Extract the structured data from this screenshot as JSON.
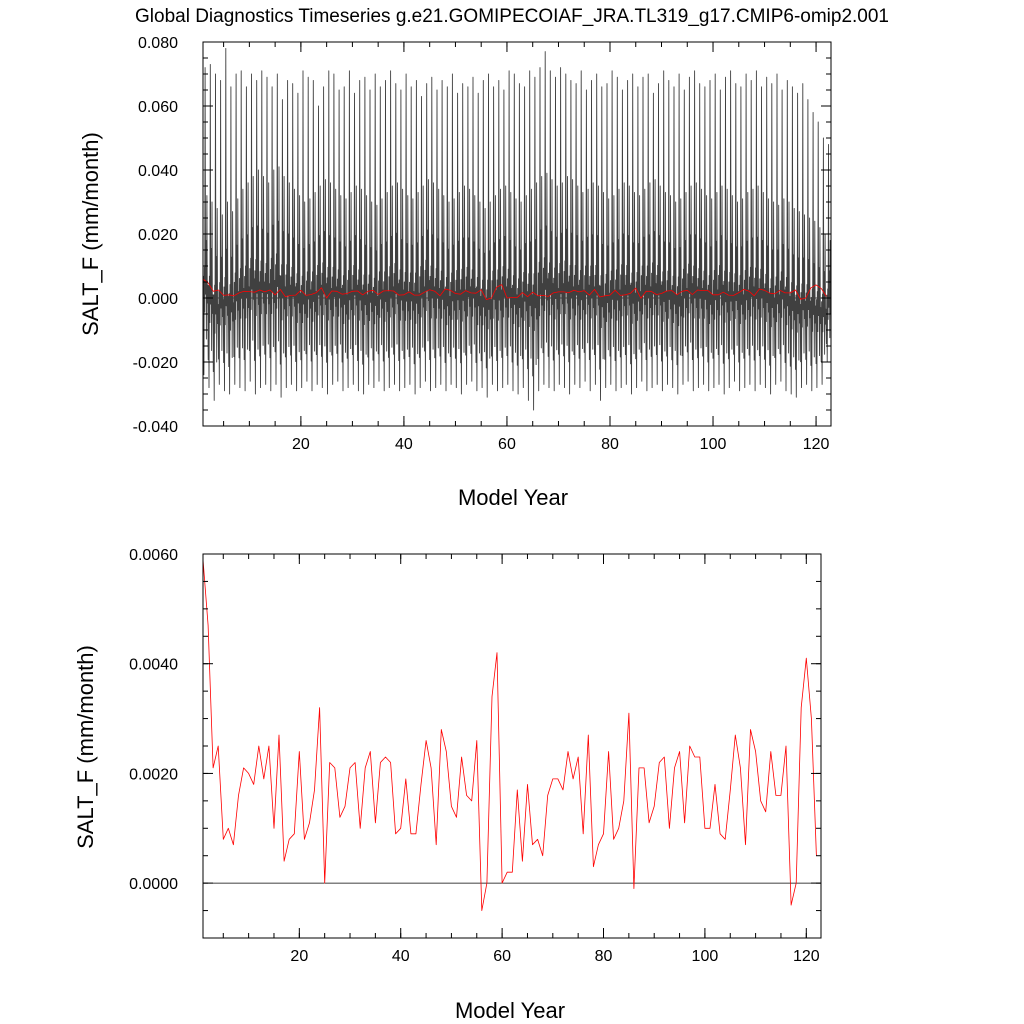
{
  "page_title": "Global Diagnostics Timeseries g.e21.GOMIPECOIAF_JRA.TL319_g17.CMIP6-omip2.001",
  "colors": {
    "monthly_series": "#404040",
    "annual_series": "#ff0000",
    "axis": "#000000",
    "background": "#ffffff"
  },
  "chart_data": [
    {
      "type": "line",
      "title": "",
      "xlabel": "Model Year",
      "ylabel": "SALT_F (mm/month)",
      "xlim": [
        1,
        122.9
      ],
      "ylim": [
        -0.04,
        0.08
      ],
      "grid": false,
      "x_ticks": [
        20,
        40,
        60,
        80,
        100,
        120
      ],
      "x_tick_labels": [
        "20",
        "40",
        "60",
        "80",
        "100",
        "120"
      ],
      "x_minor_step": 5,
      "y_ticks": [
        -0.04,
        -0.02,
        0.0,
        0.02,
        0.04,
        0.06,
        0.08
      ],
      "y_tick_labels": [
        "-0.040",
        "-0.020",
        "0.000",
        "0.020",
        "0.040",
        "0.060",
        "0.080"
      ],
      "y_minor_step": 0.005,
      "reference_line_y": 0.0,
      "series": [
        {
          "color": "#404040",
          "resolution": "monthly",
          "start_year": 1,
          "peak_max": [
            0.072,
            0.073,
            0.07,
            0.068,
            0.078,
            0.066,
            0.07,
            0.071,
            0.066,
            0.07,
            0.068,
            0.071,
            0.069,
            0.066,
            0.07,
            0.062,
            0.068,
            0.067,
            0.064,
            0.071,
            0.069,
            0.068,
            0.06,
            0.066,
            0.071,
            0.07,
            0.065,
            0.066,
            0.071,
            0.064,
            0.068,
            0.069,
            0.065,
            0.07,
            0.066,
            0.068,
            0.071,
            0.067,
            0.065,
            0.07,
            0.066,
            0.068,
            0.063,
            0.067,
            0.069,
            0.065,
            0.068,
            0.066,
            0.07,
            0.064,
            0.067,
            0.066,
            0.069,
            0.064,
            0.068,
            0.07,
            0.066,
            0.068,
            0.065,
            0.071,
            0.07,
            0.067,
            0.066,
            0.071,
            0.069,
            0.072,
            0.077,
            0.071,
            0.069,
            0.072,
            0.07,
            0.068,
            0.067,
            0.071,
            0.065,
            0.068,
            0.07,
            0.066,
            0.067,
            0.071,
            0.069,
            0.065,
            0.068,
            0.07,
            0.066,
            0.069,
            0.07,
            0.064,
            0.067,
            0.071,
            0.068,
            0.066,
            0.07,
            0.065,
            0.069,
            0.071,
            0.067,
            0.066,
            0.068,
            0.07,
            0.065,
            0.069,
            0.071,
            0.067,
            0.066,
            0.07,
            0.068,
            0.071,
            0.066,
            0.069,
            0.067,
            0.07,
            0.065,
            0.068,
            0.066,
            0.064,
            0.067,
            0.062,
            0.058,
            0.055,
            0.05,
            0.048
          ],
          "secondary_peak": [
            0.032,
            0.03,
            0.028,
            0.026,
            0.03,
            0.027,
            0.031,
            0.034,
            0.036,
            0.038,
            0.04,
            0.038,
            0.036,
            0.04,
            0.041,
            0.038,
            0.036,
            0.034,
            0.032,
            0.03,
            0.031,
            0.033,
            0.035,
            0.037,
            0.036,
            0.034,
            0.032,
            0.031,
            0.033,
            0.035,
            0.034,
            0.032,
            0.03,
            0.029,
            0.031,
            0.033,
            0.035,
            0.036,
            0.034,
            0.032,
            0.031,
            0.033,
            0.035,
            0.037,
            0.036,
            0.034,
            0.032,
            0.03,
            0.031,
            0.033,
            0.035,
            0.034,
            0.032,
            0.03,
            0.028,
            0.03,
            0.032,
            0.034,
            0.035,
            0.033,
            0.031,
            0.03,
            0.032,
            0.034,
            0.036,
            0.038,
            0.039,
            0.037,
            0.035,
            0.036,
            0.038,
            0.037,
            0.035,
            0.033,
            0.034,
            0.036,
            0.035,
            0.033,
            0.031,
            0.032,
            0.034,
            0.036,
            0.035,
            0.033,
            0.032,
            0.034,
            0.036,
            0.037,
            0.035,
            0.033,
            0.032,
            0.03,
            0.031,
            0.033,
            0.035,
            0.036,
            0.034,
            0.032,
            0.031,
            0.033,
            0.035,
            0.034,
            0.032,
            0.03,
            0.031,
            0.033,
            0.034,
            0.035,
            0.033,
            0.031,
            0.03,
            0.029,
            0.031,
            0.03,
            0.028,
            0.027,
            0.026,
            0.025,
            0.024,
            0.022,
            0.02,
            0.018
          ],
          "trough_min": [
            -0.024,
            -0.028,
            -0.032,
            -0.027,
            -0.029,
            -0.03,
            -0.027,
            -0.028,
            -0.029,
            -0.026,
            -0.03,
            -0.028,
            -0.027,
            -0.029,
            -0.027,
            -0.031,
            -0.028,
            -0.027,
            -0.029,
            -0.028,
            -0.026,
            -0.029,
            -0.027,
            -0.028,
            -0.03,
            -0.027,
            -0.026,
            -0.029,
            -0.028,
            -0.027,
            -0.029,
            -0.03,
            -0.027,
            -0.028,
            -0.026,
            -0.029,
            -0.028,
            -0.027,
            -0.029,
            -0.028,
            -0.027,
            -0.03,
            -0.028,
            -0.026,
            -0.029,
            -0.028,
            -0.027,
            -0.029,
            -0.027,
            -0.028,
            -0.03,
            -0.027,
            -0.026,
            -0.029,
            -0.028,
            -0.031,
            -0.027,
            -0.029,
            -0.028,
            -0.027,
            -0.029,
            -0.03,
            -0.028,
            -0.032,
            -0.035,
            -0.029,
            -0.027,
            -0.028,
            -0.029,
            -0.027,
            -0.028,
            -0.03,
            -0.027,
            -0.028,
            -0.026,
            -0.029,
            -0.027,
            -0.032,
            -0.028,
            -0.027,
            -0.029,
            -0.028,
            -0.027,
            -0.03,
            -0.028,
            -0.026,
            -0.029,
            -0.028,
            -0.027,
            -0.029,
            -0.027,
            -0.028,
            -0.03,
            -0.027,
            -0.026,
            -0.029,
            -0.028,
            -0.027,
            -0.029,
            -0.028,
            -0.027,
            -0.03,
            -0.028,
            -0.026,
            -0.029,
            -0.028,
            -0.027,
            -0.029,
            -0.027,
            -0.028,
            -0.03,
            -0.027,
            -0.026,
            -0.029,
            -0.03,
            -0.031,
            -0.028,
            -0.027,
            -0.029,
            -0.028,
            -0.027,
            -0.02
          ]
        },
        {
          "color": "#ff0000",
          "resolution": "annual",
          "x": [
            1,
            2,
            3,
            4,
            5,
            6,
            7,
            8,
            9,
            10,
            11,
            12,
            13,
            14,
            15,
            16,
            17,
            18,
            19,
            20,
            21,
            22,
            23,
            24,
            25,
            26,
            27,
            28,
            29,
            30,
            31,
            32,
            33,
            34,
            35,
            36,
            37,
            38,
            39,
            40,
            41,
            42,
            43,
            44,
            45,
            46,
            47,
            48,
            49,
            50,
            51,
            52,
            53,
            54,
            55,
            56,
            57,
            58,
            59,
            60,
            61,
            62,
            63,
            64,
            65,
            66,
            67,
            68,
            69,
            70,
            71,
            72,
            73,
            74,
            75,
            76,
            77,
            78,
            79,
            80,
            81,
            82,
            83,
            84,
            85,
            86,
            87,
            88,
            89,
            90,
            91,
            92,
            93,
            94,
            95,
            96,
            97,
            98,
            99,
            100,
            101,
            102,
            103,
            104,
            105,
            106,
            107,
            108,
            109,
            110,
            111,
            112,
            113,
            114,
            115,
            116,
            117,
            118,
            119,
            120,
            121,
            122
          ],
          "values": [
            0.0059,
            0.0047,
            0.0021,
            0.0025,
            0.0008,
            0.001,
            0.0007,
            0.0016,
            0.0021,
            0.002,
            0.0018,
            0.0025,
            0.0019,
            0.0025,
            0.001,
            0.0027,
            0.0004,
            0.0008,
            0.0009,
            0.0024,
            0.0008,
            0.0011,
            0.0017,
            0.0032,
            0.0,
            0.0022,
            0.0021,
            0.0012,
            0.0014,
            0.0021,
            0.0022,
            0.001,
            0.0021,
            0.0024,
            0.0011,
            0.0022,
            0.0023,
            0.0022,
            0.0009,
            0.001,
            0.0019,
            0.0009,
            0.0009,
            0.0018,
            0.0026,
            0.0021,
            0.0007,
            0.0028,
            0.0024,
            0.0014,
            0.0012,
            0.0023,
            0.0016,
            0.0015,
            0.0026,
            -0.0005,
            0.0,
            0.0034,
            0.0042,
            0.0,
            0.0002,
            0.0002,
            0.0017,
            0.0004,
            0.0018,
            0.0007,
            0.0008,
            0.0005,
            0.0016,
            0.0019,
            0.0019,
            0.0017,
            0.0024,
            0.0019,
            0.0023,
            0.0009,
            0.0027,
            0.0003,
            0.0007,
            0.0009,
            0.0024,
            0.0008,
            0.001,
            0.0015,
            0.0031,
            -0.0001,
            0.0021,
            0.0021,
            0.0011,
            0.0014,
            0.0022,
            0.0023,
            0.001,
            0.0021,
            0.0024,
            0.0011,
            0.0025,
            0.0023,
            0.0023,
            0.001,
            0.001,
            0.0018,
            0.0009,
            0.0008,
            0.0017,
            0.0027,
            0.0021,
            0.0007,
            0.0028,
            0.0024,
            0.0015,
            0.0013,
            0.0024,
            0.0016,
            0.0016,
            0.0025,
            -0.0004,
            0.0,
            0.0032,
            0.0041,
            0.003,
            0.0005
          ]
        }
      ]
    },
    {
      "type": "line",
      "title": "",
      "xlabel": "Model Year",
      "ylabel": "SALT_F (mm/month)",
      "xlim": [
        1,
        122.9
      ],
      "ylim": [
        -0.001,
        0.006
      ],
      "grid": false,
      "x_ticks": [
        20,
        40,
        60,
        80,
        100,
        120
      ],
      "x_tick_labels": [
        "20",
        "40",
        "60",
        "80",
        "100",
        "120"
      ],
      "x_minor_step": 5,
      "y_ticks": [
        0.0,
        0.002,
        0.004,
        0.006
      ],
      "y_tick_labels": [
        "0.0000",
        "0.0020",
        "0.0040",
        "0.0060"
      ],
      "y_minor_step": 0.0005,
      "reference_line_y": 0.0,
      "series": [
        {
          "color": "#ff0000",
          "resolution": "annual",
          "x": [
            1,
            2,
            3,
            4,
            5,
            6,
            7,
            8,
            9,
            10,
            11,
            12,
            13,
            14,
            15,
            16,
            17,
            18,
            19,
            20,
            21,
            22,
            23,
            24,
            25,
            26,
            27,
            28,
            29,
            30,
            31,
            32,
            33,
            34,
            35,
            36,
            37,
            38,
            39,
            40,
            41,
            42,
            43,
            44,
            45,
            46,
            47,
            48,
            49,
            50,
            51,
            52,
            53,
            54,
            55,
            56,
            57,
            58,
            59,
            60,
            61,
            62,
            63,
            64,
            65,
            66,
            67,
            68,
            69,
            70,
            71,
            72,
            73,
            74,
            75,
            76,
            77,
            78,
            79,
            80,
            81,
            82,
            83,
            84,
            85,
            86,
            87,
            88,
            89,
            90,
            91,
            92,
            93,
            94,
            95,
            96,
            97,
            98,
            99,
            100,
            101,
            102,
            103,
            104,
            105,
            106,
            107,
            108,
            109,
            110,
            111,
            112,
            113,
            114,
            115,
            116,
            117,
            118,
            119,
            120,
            121,
            122
          ],
          "values": [
            0.0059,
            0.0047,
            0.0021,
            0.0025,
            0.0008,
            0.001,
            0.0007,
            0.0016,
            0.0021,
            0.002,
            0.0018,
            0.0025,
            0.0019,
            0.0025,
            0.001,
            0.0027,
            0.0004,
            0.0008,
            0.0009,
            0.0024,
            0.0008,
            0.0011,
            0.0017,
            0.0032,
            0.0,
            0.0022,
            0.0021,
            0.0012,
            0.0014,
            0.0021,
            0.0022,
            0.001,
            0.0021,
            0.0024,
            0.0011,
            0.0022,
            0.0023,
            0.0022,
            0.0009,
            0.001,
            0.0019,
            0.0009,
            0.0009,
            0.0018,
            0.0026,
            0.0021,
            0.0007,
            0.0028,
            0.0024,
            0.0014,
            0.0012,
            0.0023,
            0.0016,
            0.0015,
            0.0026,
            -0.0005,
            0.0,
            0.0034,
            0.0042,
            0.0,
            0.0002,
            0.0002,
            0.0017,
            0.0004,
            0.0018,
            0.0007,
            0.0008,
            0.0005,
            0.0016,
            0.0019,
            0.0019,
            0.0017,
            0.0024,
            0.0019,
            0.0023,
            0.0009,
            0.0027,
            0.0003,
            0.0007,
            0.0009,
            0.0024,
            0.0008,
            0.001,
            0.0015,
            0.0031,
            -0.0001,
            0.0021,
            0.0021,
            0.0011,
            0.0014,
            0.0022,
            0.0023,
            0.001,
            0.0021,
            0.0024,
            0.0011,
            0.0025,
            0.0023,
            0.0023,
            0.001,
            0.001,
            0.0018,
            0.0009,
            0.0008,
            0.0017,
            0.0027,
            0.0021,
            0.0007,
            0.0028,
            0.0024,
            0.0015,
            0.0013,
            0.0024,
            0.0016,
            0.0016,
            0.0025,
            -0.0004,
            0.0,
            0.0032,
            0.0041,
            0.003,
            0.0005
          ]
        }
      ]
    }
  ]
}
